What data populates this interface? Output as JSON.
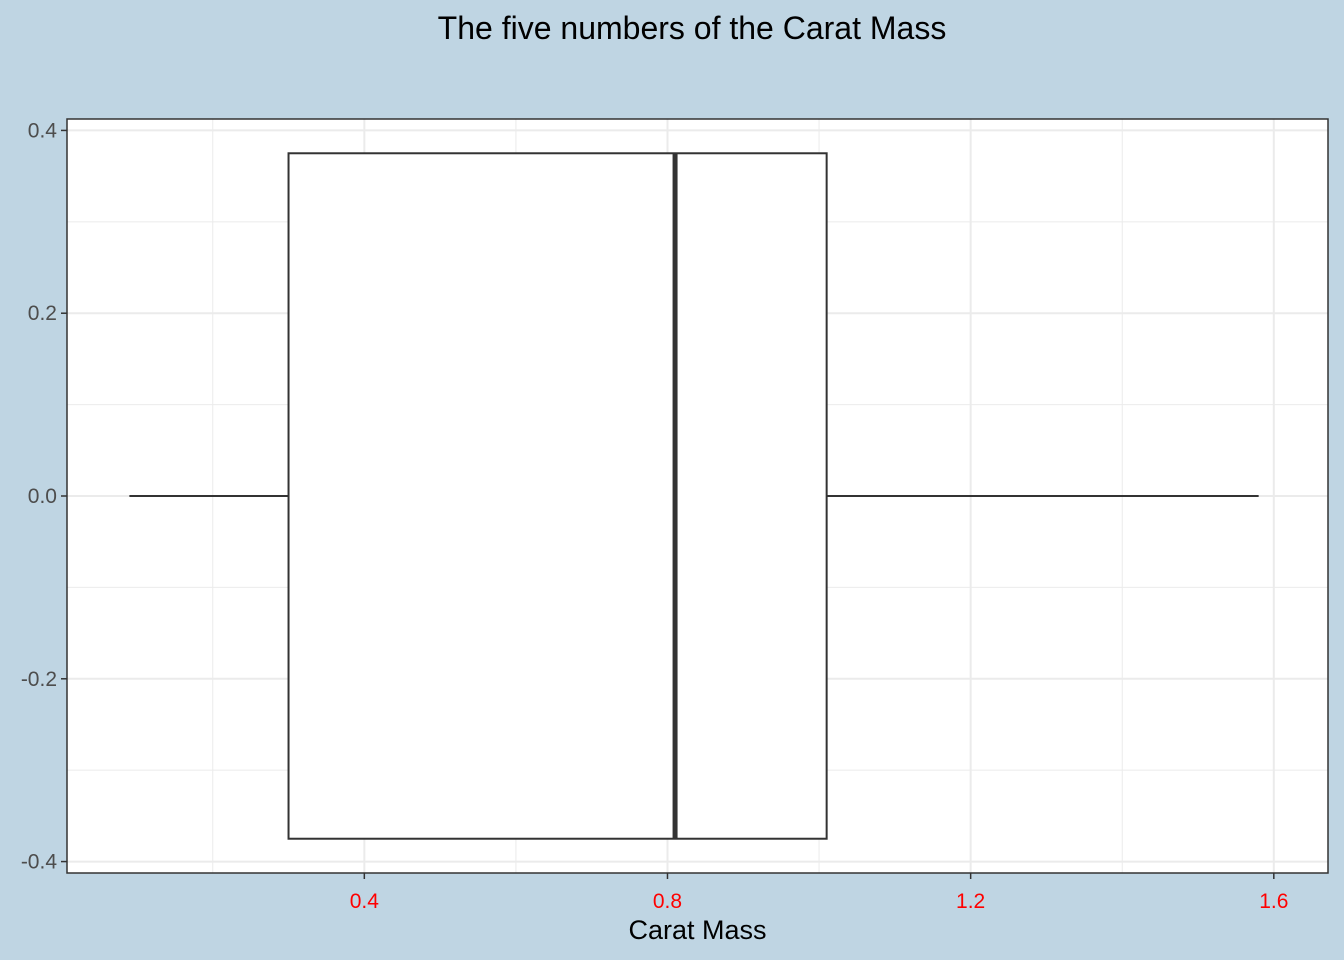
{
  "chart_data": {
    "type": "boxplot",
    "title": "The five numbers of the Carat Mass",
    "xlabel": "Carat Mass",
    "ylabel": "",
    "xlim": [
      0.0077,
      1.6715
    ],
    "ylim": [
      -0.4125,
      0.4125
    ],
    "x_ticks": [
      0.4,
      0.8,
      1.2,
      1.6
    ],
    "x_tick_labels": [
      "0.4",
      "0.8",
      "1.2",
      "1.6"
    ],
    "x_tick_label_color": "#ff0000",
    "y_ticks": [
      -0.4,
      -0.2,
      0.0,
      0.2,
      0.4
    ],
    "y_tick_labels": [
      "-0.4",
      "-0.2",
      "0.0",
      "0.2",
      "0.4"
    ],
    "grid": true,
    "box": {
      "min": 0.09,
      "q1": 0.3,
      "median": 0.81,
      "q3": 1.01,
      "max": 1.58,
      "y_center": 0.0,
      "half_width": 0.375
    },
    "colors": {
      "background": "#bfd5e3",
      "panel": "#ffffff",
      "grid": "#ebebeb",
      "box_stroke": "#333333"
    }
  }
}
